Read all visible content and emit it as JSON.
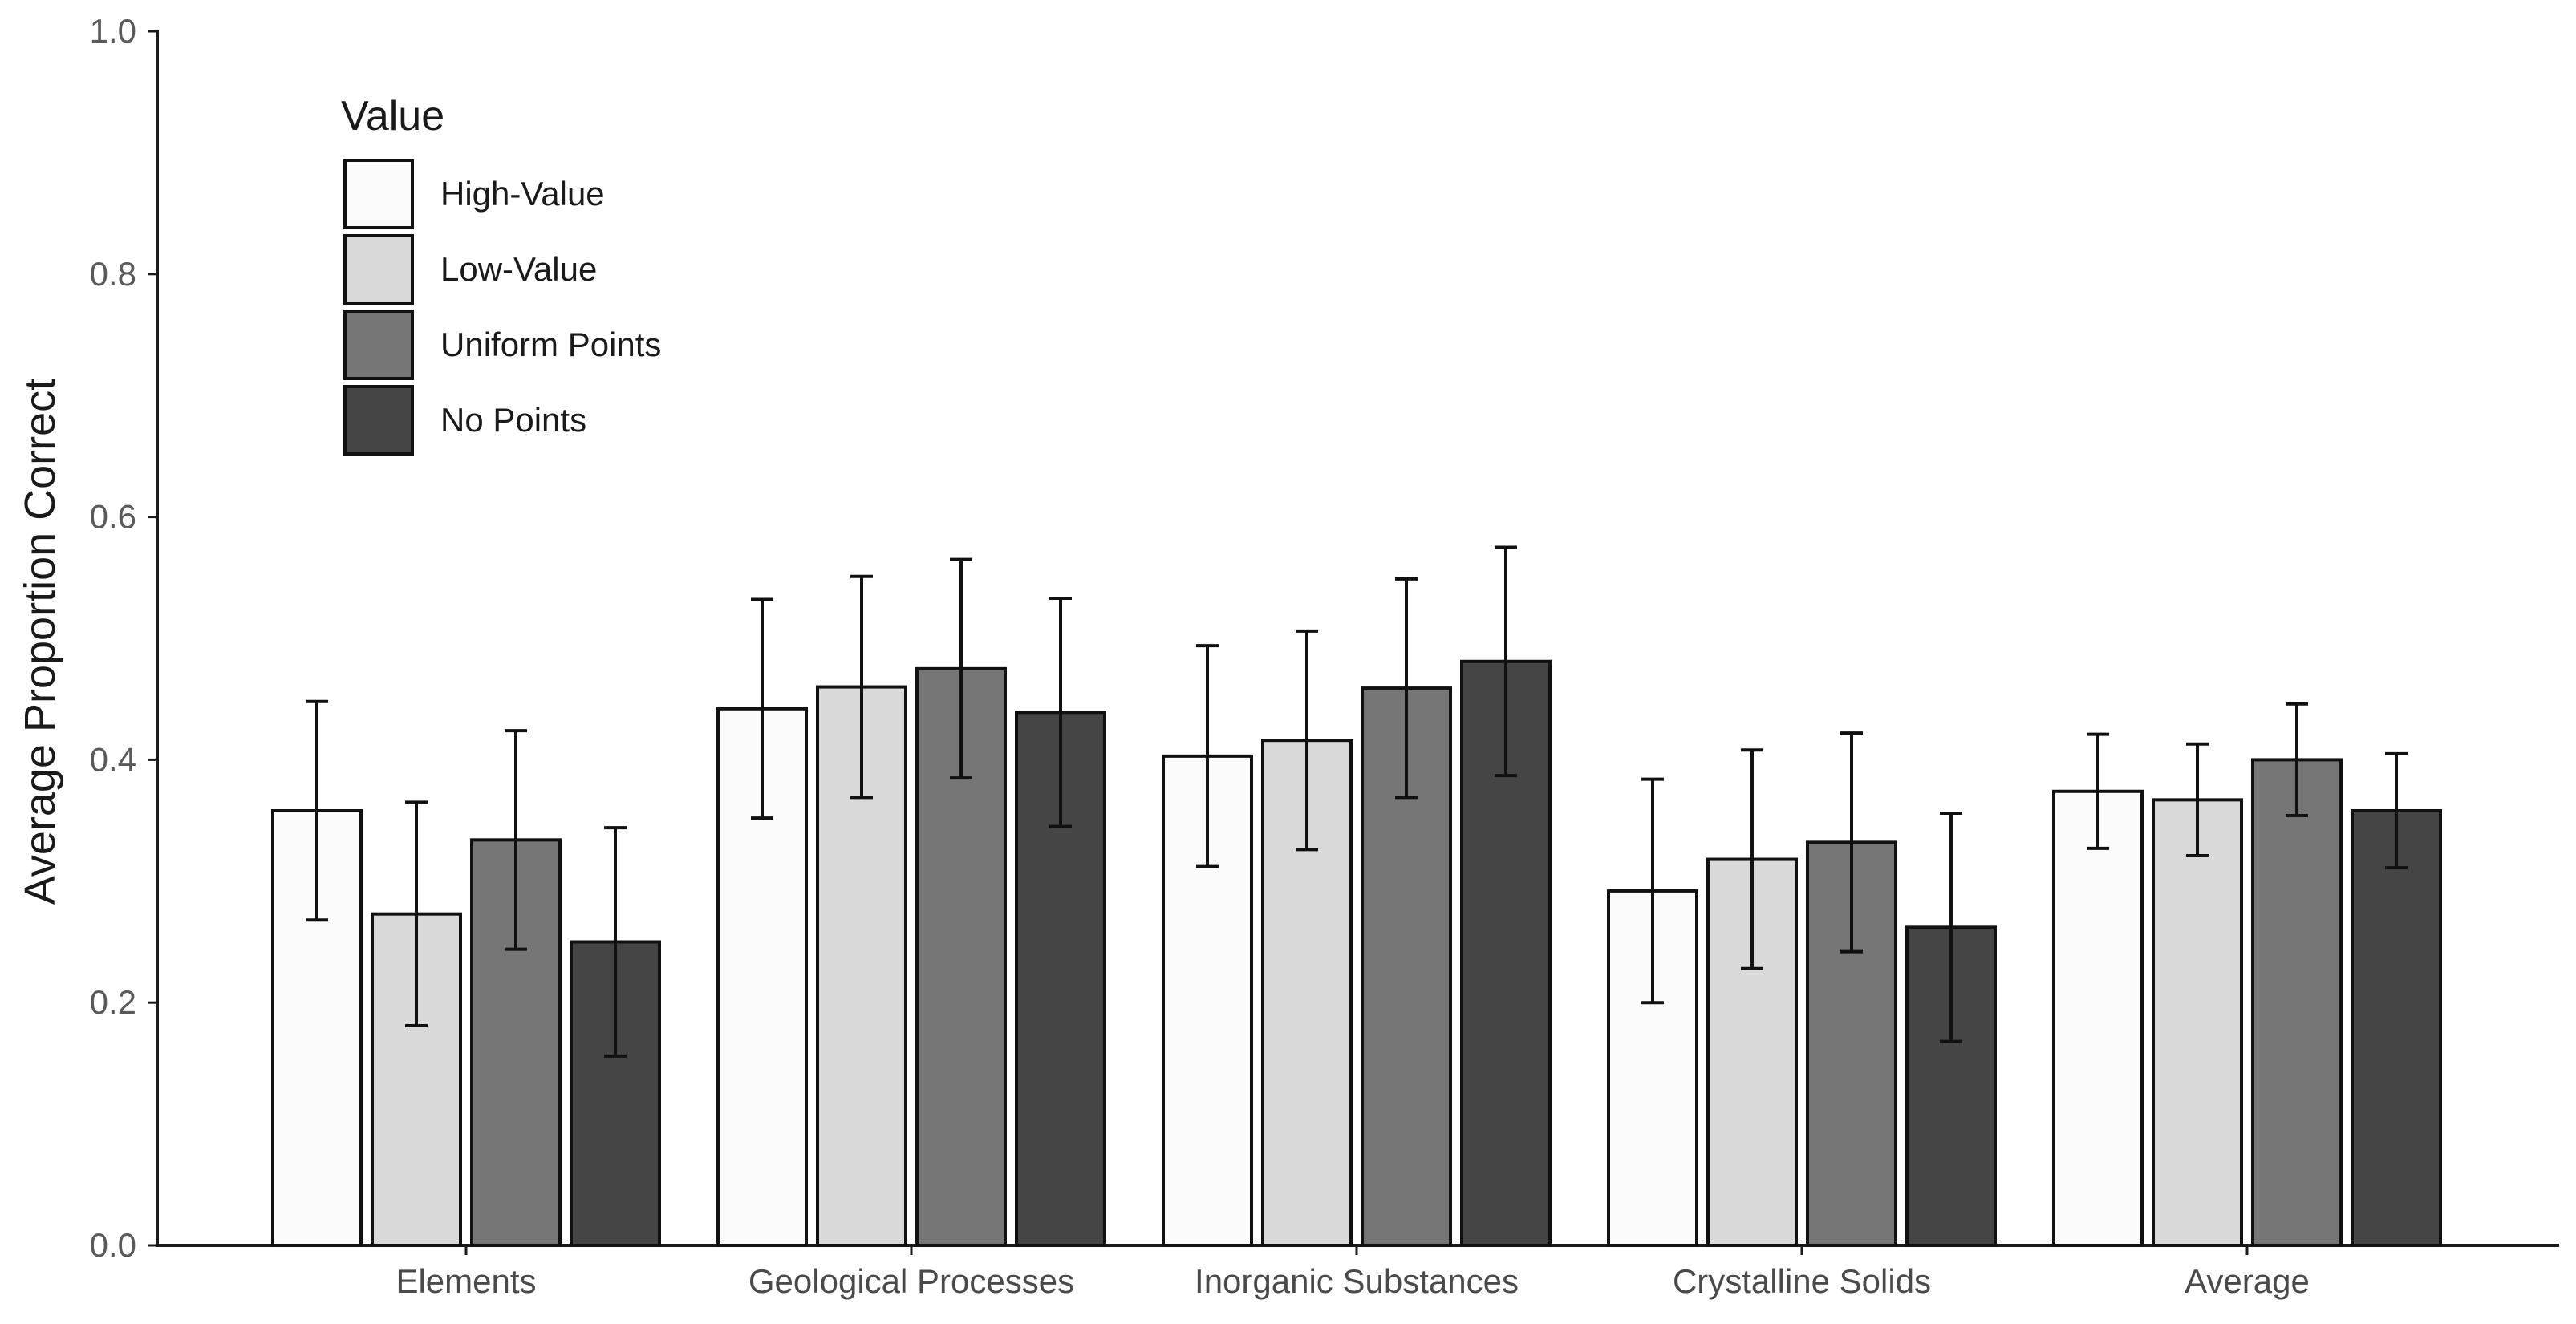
{
  "chart_data": {
    "type": "bar",
    "title": "",
    "xlabel": "",
    "ylabel": "Average Proportion Correct",
    "ylim": [
      0,
      1
    ],
    "yticks": [
      "0.0",
      "0.2",
      "0.4",
      "0.6",
      "0.8",
      "1.0"
    ],
    "categories": [
      "Elements",
      "Geological Processes",
      "Inorganic Substances",
      "Crystalline Solids",
      "Average"
    ],
    "legend": {
      "title": "Value",
      "placement": "top-left"
    },
    "grid": false,
    "series": [
      {
        "name": "High-Value",
        "color": "#fbfbfb",
        "values": [
          0.358,
          0.442,
          0.403,
          0.292,
          0.374
        ],
        "error": [
          0.09,
          0.09,
          0.091,
          0.092,
          0.047
        ]
      },
      {
        "name": "Low-Value",
        "color": "#d9d9d9",
        "values": [
          0.273,
          0.46,
          0.416,
          0.318,
          0.367
        ],
        "error": [
          0.092,
          0.091,
          0.09,
          0.09,
          0.046
        ]
      },
      {
        "name": "Uniform Points",
        "color": "#767676",
        "values": [
          0.334,
          0.475,
          0.459,
          0.332,
          0.4
        ],
        "error": [
          0.09,
          0.09,
          0.09,
          0.09,
          0.046
        ]
      },
      {
        "name": "No Points",
        "color": "#454545",
        "values": [
          0.25,
          0.439,
          0.481,
          0.262,
          0.358
        ],
        "error": [
          0.094,
          0.094,
          0.094,
          0.094,
          0.047
        ]
      }
    ]
  }
}
